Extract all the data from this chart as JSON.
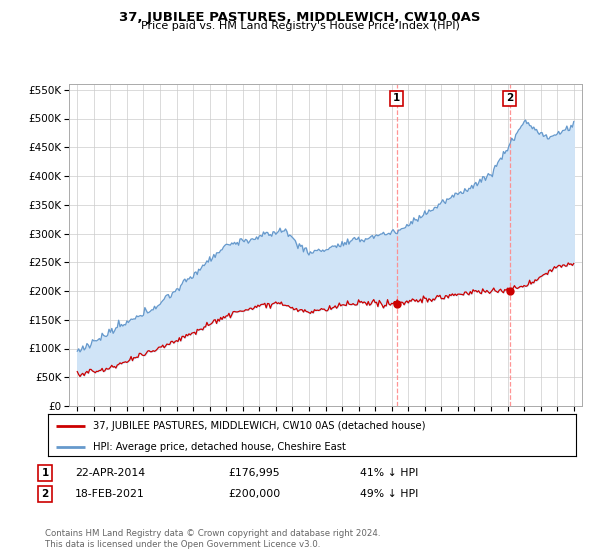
{
  "title": "37, JUBILEE PASTURES, MIDDLEWICH, CW10 0AS",
  "subtitle": "Price paid vs. HM Land Registry's House Price Index (HPI)",
  "red_label": "37, JUBILEE PASTURES, MIDDLEWICH, CW10 0AS (detached house)",
  "blue_label": "HPI: Average price, detached house, Cheshire East",
  "transaction1_date": "22-APR-2014",
  "transaction1_price": 176995,
  "transaction1_pct": "41% ↓ HPI",
  "transaction1_year": 2014.3,
  "transaction2_date": "18-FEB-2021",
  "transaction2_price": 200000,
  "transaction2_pct": "49% ↓ HPI",
  "transaction2_year": 2021.13,
  "footer": "Contains HM Land Registry data © Crown copyright and database right 2024.\nThis data is licensed under the Open Government Licence v3.0.",
  "ylim": [
    0,
    560000
  ],
  "yticks": [
    0,
    50000,
    100000,
    150000,
    200000,
    250000,
    300000,
    350000,
    400000,
    450000,
    500000,
    550000
  ],
  "xmin": 1994.5,
  "xmax": 2025.5,
  "background_color": "#ffffff",
  "grid_color": "#cccccc",
  "red_color": "#cc0000",
  "blue_color": "#6699cc",
  "fill_color": "#d0e4f7"
}
